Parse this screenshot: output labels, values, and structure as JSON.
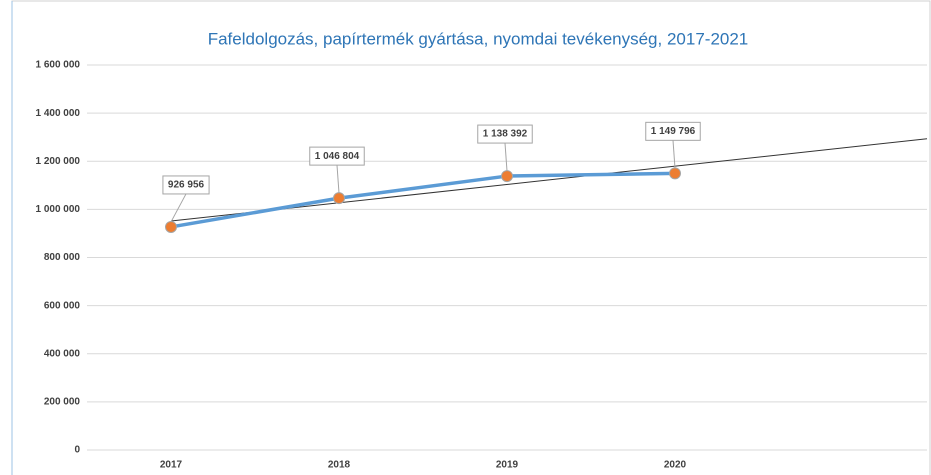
{
  "chart_data": {
    "type": "line",
    "title": "Fafeldolgozás, papírtermék gyártása, nyomdai tevékenység, 2017-2021",
    "categories": [
      "2017",
      "2018",
      "2019",
      "2020",
      null
    ],
    "series": [
      {
        "color": "#5b9bd5",
        "marker_color": "#ed7d31",
        "values": [
          926956,
          1046804,
          1138392,
          1149796,
          null
        ],
        "value_labels": [
          "926 956",
          "1 046 804",
          "1 138 392",
          "1 149 796",
          null
        ]
      }
    ],
    "trendline": "linear",
    "ylim": [
      0,
      1600000
    ],
    "yticks": [
      0,
      {
        "value": 200000,
        "label": "200 000"
      },
      {
        "value": 400000,
        "label": "400 000"
      },
      {
        "value": 600000,
        "label": "600 000"
      },
      {
        "value": 800000,
        "label": "800 000"
      },
      {
        "value": 1000000,
        "label": "1 000 000"
      },
      {
        "value": 1200000,
        "label": "1 200 000"
      },
      {
        "value": 1400000,
        "label": "1 400 000"
      },
      {
        "value": 1600000,
        "label": "1 600 000"
      }
    ],
    "grid": true
  }
}
